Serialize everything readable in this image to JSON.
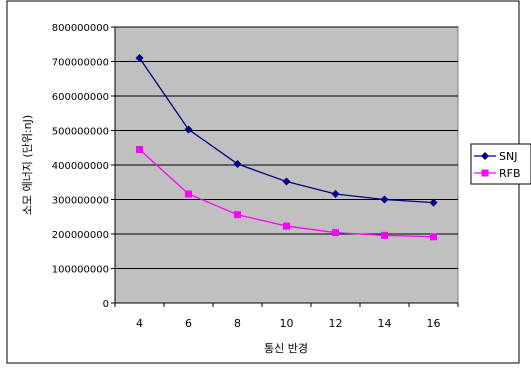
{
  "chart_data": {
    "type": "line",
    "title": "",
    "xlabel": "통신 반경",
    "ylabel": "소모 에너지 (단위:nJ)",
    "categories": [
      "4",
      "6",
      "8",
      "10",
      "12",
      "14",
      "16"
    ],
    "ylim": [
      0,
      800000000
    ],
    "yticks": [
      "0",
      "100000000",
      "200000000",
      "300000000",
      "400000000",
      "500000000",
      "600000000",
      "700000000",
      "800000000"
    ],
    "grid": true,
    "legend_position": "right",
    "plot_background": "#c0c0c0",
    "series": [
      {
        "name": "SNJ",
        "color": "#000080",
        "marker": "diamond",
        "values": [
          710000000,
          503000000,
          403000000,
          352000000,
          316000000,
          300000000,
          291000000
        ]
      },
      {
        "name": "RFB",
        "color": "#ff00ff",
        "marker": "square",
        "values": [
          445000000,
          316000000,
          256000000,
          223000000,
          204000000,
          196000000,
          192000000
        ]
      }
    ]
  }
}
